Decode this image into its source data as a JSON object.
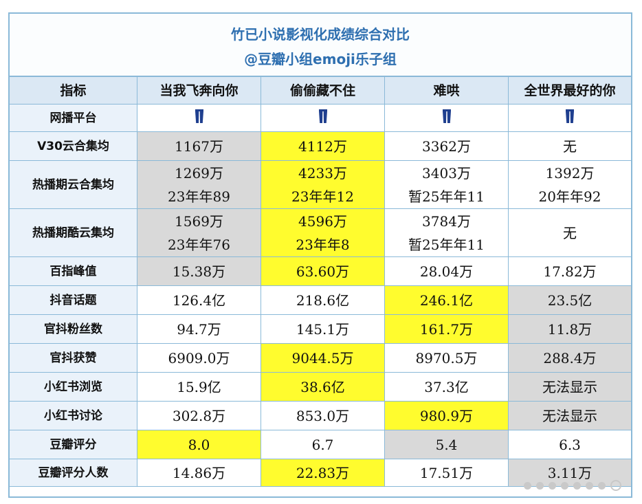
{
  "title": {
    "line1": "竹已小说影视化成绩综合对比",
    "line2": "@豆瓣小组emoji乐子组"
  },
  "header": {
    "indicator": "指标",
    "columns": [
      "当我飞奔向你",
      "偷偷藏不住",
      "难哄",
      "全世界最好的你"
    ]
  },
  "platform_row": {
    "label": "网播平台",
    "icon": "jeans-icon",
    "icon_color": "#1f3f8f"
  },
  "colors": {
    "highlight_top": "#fffc2e",
    "highlight_low": "#d9d9d9",
    "border": "#8ab9d8",
    "title": "#2e6fb0"
  },
  "rows": [
    {
      "label": "V30云合集均",
      "cells": [
        {
          "lines": [
            "1167万"
          ],
          "hl": "gray"
        },
        {
          "lines": [
            "4112万"
          ],
          "hl": "yellow"
        },
        {
          "lines": [
            "3362万"
          ],
          "hl": ""
        },
        {
          "lines": [
            "无"
          ],
          "hl": ""
        }
      ]
    },
    {
      "label": "热播期云合集均",
      "cells": [
        {
          "lines": [
            "1269万",
            "23年年89"
          ],
          "hl": "gray"
        },
        {
          "lines": [
            "4233万",
            "23年年12"
          ],
          "hl": "yellow"
        },
        {
          "lines": [
            "3403万",
            "暂25年年11"
          ],
          "hl": ""
        },
        {
          "lines": [
            "1392万",
            "20年年92"
          ],
          "hl": ""
        }
      ]
    },
    {
      "label": "热播期酷云集均",
      "cells": [
        {
          "lines": [
            "1569万",
            "23年年76"
          ],
          "hl": "gray"
        },
        {
          "lines": [
            "4596万",
            "23年年8"
          ],
          "hl": "yellow"
        },
        {
          "lines": [
            "3784万",
            "暂25年年11"
          ],
          "hl": ""
        },
        {
          "lines": [
            "无"
          ],
          "hl": ""
        }
      ]
    },
    {
      "label": "百指峰值",
      "cells": [
        {
          "lines": [
            "15.38万"
          ],
          "hl": "gray"
        },
        {
          "lines": [
            "63.60万"
          ],
          "hl": "yellow"
        },
        {
          "lines": [
            "28.04万"
          ],
          "hl": ""
        },
        {
          "lines": [
            "17.82万"
          ],
          "hl": ""
        }
      ]
    },
    {
      "label": "抖音话题",
      "cells": [
        {
          "lines": [
            "126.4亿"
          ],
          "hl": ""
        },
        {
          "lines": [
            "218.6亿"
          ],
          "hl": ""
        },
        {
          "lines": [
            "246.1亿"
          ],
          "hl": "yellow"
        },
        {
          "lines": [
            "23.5亿"
          ],
          "hl": "gray"
        }
      ]
    },
    {
      "label": "官抖粉丝数",
      "cells": [
        {
          "lines": [
            "94.7万"
          ],
          "hl": ""
        },
        {
          "lines": [
            "145.1万"
          ],
          "hl": ""
        },
        {
          "lines": [
            "161.7万"
          ],
          "hl": "yellow"
        },
        {
          "lines": [
            "11.8万"
          ],
          "hl": "gray"
        }
      ]
    },
    {
      "label": "官抖获赞",
      "cells": [
        {
          "lines": [
            "6909.0万"
          ],
          "hl": ""
        },
        {
          "lines": [
            "9044.5万"
          ],
          "hl": "yellow"
        },
        {
          "lines": [
            "8970.5万"
          ],
          "hl": ""
        },
        {
          "lines": [
            "288.4万"
          ],
          "hl": "gray"
        }
      ]
    },
    {
      "label": "小红书浏览",
      "cells": [
        {
          "lines": [
            "15.9亿"
          ],
          "hl": ""
        },
        {
          "lines": [
            "38.6亿"
          ],
          "hl": "yellow"
        },
        {
          "lines": [
            "37.3亿"
          ],
          "hl": ""
        },
        {
          "lines": [
            "无法显示"
          ],
          "hl": "gray"
        }
      ]
    },
    {
      "label": "小红书讨论",
      "cells": [
        {
          "lines": [
            "302.8万"
          ],
          "hl": ""
        },
        {
          "lines": [
            "853.0万"
          ],
          "hl": ""
        },
        {
          "lines": [
            "980.9万"
          ],
          "hl": "yellow"
        },
        {
          "lines": [
            "无法显示"
          ],
          "hl": "gray"
        }
      ]
    },
    {
      "label": "豆瓣评分",
      "cells": [
        {
          "lines": [
            "8.0"
          ],
          "hl": "yellow"
        },
        {
          "lines": [
            "6.7"
          ],
          "hl": ""
        },
        {
          "lines": [
            "5.4"
          ],
          "hl": "gray"
        },
        {
          "lines": [
            "6.3"
          ],
          "hl": ""
        }
      ]
    },
    {
      "label": "豆瓣评分人数",
      "cells": [
        {
          "lines": [
            "14.86万"
          ],
          "hl": ""
        },
        {
          "lines": [
            "22.83万"
          ],
          "hl": "yellow"
        },
        {
          "lines": [
            "17.51万"
          ],
          "hl": ""
        },
        {
          "lines": [
            "3.11万"
          ],
          "hl": "gray"
        }
      ]
    }
  ]
}
